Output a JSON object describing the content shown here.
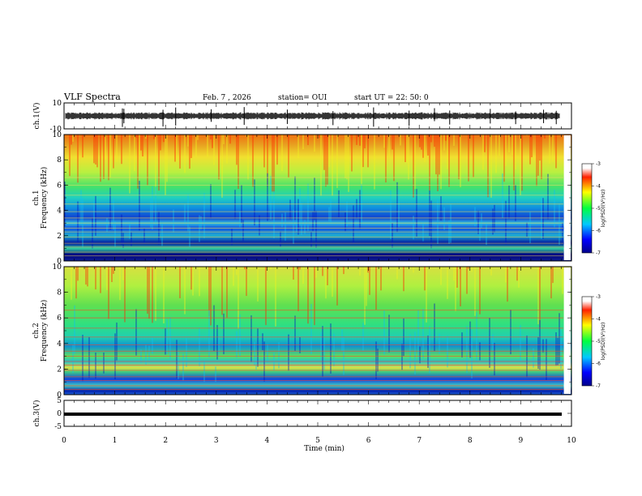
{
  "header": {
    "title": "VLF Spectra",
    "date": "Feb. 7 , 2026",
    "station": "station= OUI",
    "start_time": "start  UT =   22: 50: 0"
  },
  "chart_data": [
    {
      "type": "line",
      "panel": "ch1-waveform",
      "ylabel": "ch.1(V)",
      "ylim": [
        -10,
        10
      ],
      "yticks": [
        10,
        -10
      ],
      "xlim": [
        0,
        10
      ],
      "baseline": 0,
      "spikes_min": [
        1.15,
        1.18,
        1.95,
        2.2,
        2.9,
        3.55,
        4.4,
        5.3,
        6.1,
        6.8,
        7.3,
        7.6,
        8.4,
        8.9,
        9.45,
        9.7
      ],
      "color": "#000000"
    },
    {
      "type": "heatmap",
      "panel": "ch1-spectrogram",
      "ylabel": "ch.1\nFrequency (kHz)",
      "ylim": [
        0,
        10
      ],
      "yticks": [
        0,
        2,
        4,
        6,
        8,
        10
      ],
      "xlim": [
        0,
        10
      ],
      "colorbar": {
        "label": "log(PSD)(V²/Hz)",
        "ticks": [
          -3,
          -4,
          -5,
          -6,
          -7
        ],
        "range": [
          -7,
          -3
        ]
      }
    },
    {
      "type": "heatmap",
      "panel": "ch2-spectrogram",
      "ylabel": "ch.2\nFrequency (kHz)",
      "ylim": [
        0,
        10
      ],
      "yticks": [
        0,
        2,
        4,
        6,
        8,
        10
      ],
      "xlim": [
        0,
        10
      ],
      "colorbar": {
        "label": "log(PSD)(V²/Hz)",
        "ticks": [
          -3,
          -4,
          -5,
          -6,
          -7
        ],
        "range": [
          -7,
          -3
        ]
      }
    },
    {
      "type": "line",
      "panel": "ch3-waveform",
      "ylabel": "ch.3(V)",
      "ylim": [
        -5,
        5
      ],
      "yticks": [
        5,
        0,
        -5
      ],
      "xlim": [
        0,
        10
      ],
      "baseline": 0,
      "color": "#000000"
    }
  ],
  "xaxis": {
    "label": "Time  (min)",
    "ticks": [
      0,
      1,
      2,
      3,
      4,
      5,
      6,
      7,
      8,
      9,
      10
    ]
  }
}
